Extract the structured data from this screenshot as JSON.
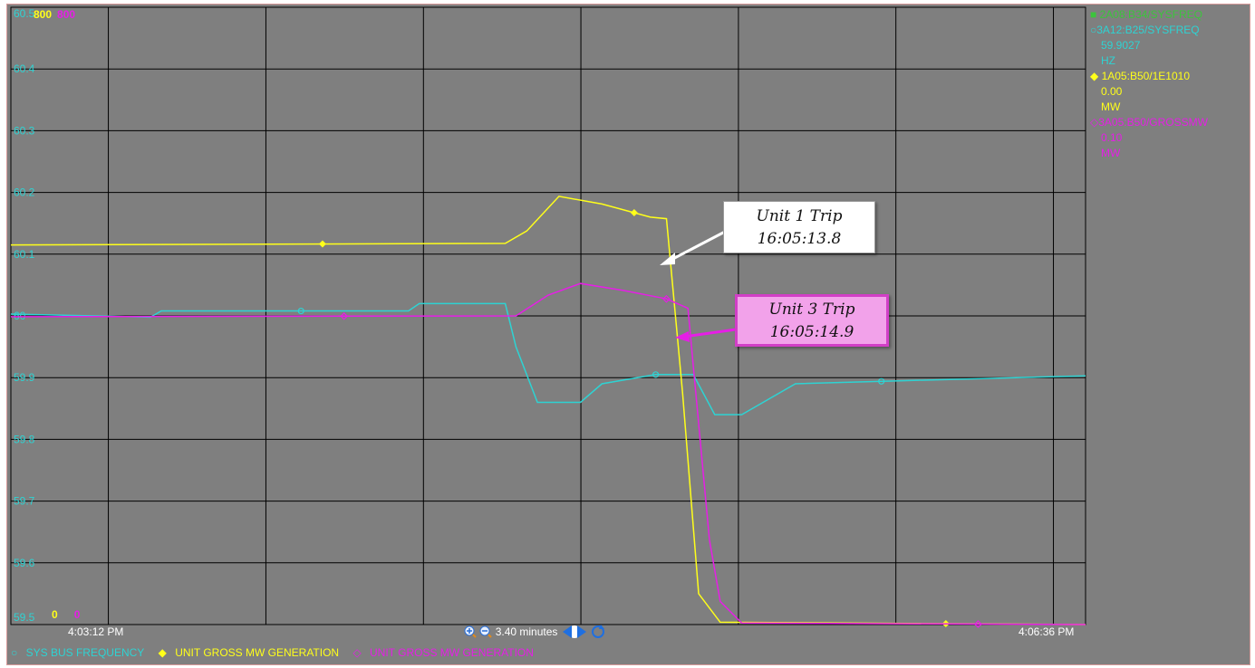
{
  "plot": {
    "y_axis_labels": [
      "60.5",
      "60.4",
      "60.3",
      "60.2",
      "60.1",
      "60",
      "59.9",
      "59.8",
      "59.7",
      "59.6",
      "59.5"
    ],
    "top_scale": {
      "yellow": "800",
      "magenta": "800"
    },
    "bottom_scale": {
      "yellow": "0",
      "magenta": "0"
    }
  },
  "bottom_bar": {
    "start_time": "4:03:12 PM",
    "end_time": "4:06:36 PM",
    "duration": "3.40 minutes"
  },
  "bottom_legend": {
    "cyan_label": "SYS BUS FREQUENCY",
    "yellow_label": "UNIT GROSS MW GENERATION",
    "magenta_label": "UNIT GROSS MW GENERATION"
  },
  "side_legend": {
    "green_tag": "2A08:B34/SYSFREQ",
    "cyan_tag": "3A12:B25/SYSFREQ",
    "cyan_value": "59.9027",
    "cyan_unit": "HZ",
    "yellow_tag": "1A05:B50/1E1010",
    "yellow_value": "0.00",
    "yellow_unit": "MW",
    "magenta_tag": "3A05:B50/GROSSMW",
    "magenta_value": "0.10",
    "magenta_unit": "MW"
  },
  "annotations": {
    "unit1_title": "Unit 1 Trip",
    "unit1_time": "16:05:13.8",
    "unit3_title": "Unit 3 Trip",
    "unit3_time": "16:05:14.9"
  },
  "colors": {
    "background": "#7f7f7f",
    "cyan": "#2ed3d3",
    "yellow": "#ffff1a",
    "magenta": "#e61ee6",
    "green": "#3cc43c",
    "grid": "#000000"
  },
  "chart_data": {
    "type": "line",
    "y_left_axis": {
      "range": [
        59.5,
        60.5
      ],
      "unit": "HZ"
    },
    "y_right_axis": {
      "range": [
        0,
        800
      ],
      "unit": "MW"
    },
    "x_range": [
      "4:03:12 PM",
      "4:06:36 PM"
    ],
    "grid": true,
    "series": [
      {
        "name": "SYS BUS FREQUENCY",
        "color": "#2ed3d3",
        "axis": "HZ",
        "points": [
          [
            0,
            60.003
          ],
          [
            0.13,
            59.998
          ],
          [
            0.14,
            60.008
          ],
          [
            0.37,
            60.008
          ],
          [
            0.38,
            60.02
          ],
          [
            0.46,
            60.02
          ],
          [
            0.47,
            59.95
          ],
          [
            0.49,
            59.86
          ],
          [
            0.53,
            59.86
          ],
          [
            0.55,
            59.89
          ],
          [
            0.6,
            59.905
          ],
          [
            0.635,
            59.905
          ],
          [
            0.655,
            59.84
          ],
          [
            0.68,
            59.84
          ],
          [
            0.73,
            59.89
          ],
          [
            0.83,
            59.895
          ],
          [
            1.0,
            59.903
          ]
        ]
      },
      {
        "name": "UNIT GROSS MW GENERATION",
        "color": "#ffff1a",
        "axis": "MW",
        "points": [
          [
            0,
            492
          ],
          [
            0.46,
            494
          ],
          [
            0.48,
            510
          ],
          [
            0.51,
            555
          ],
          [
            0.55,
            545
          ],
          [
            0.595,
            528
          ],
          [
            0.61,
            526
          ],
          [
            0.625,
            300
          ],
          [
            0.64,
            40
          ],
          [
            0.66,
            3
          ],
          [
            1.0,
            0
          ]
        ]
      },
      {
        "name": "UNIT GROSS MW GENERATION",
        "color": "#e61ee6",
        "axis": "MW",
        "points": [
          [
            0,
            399
          ],
          [
            0.47,
            400
          ],
          [
            0.5,
            427
          ],
          [
            0.53,
            442
          ],
          [
            0.57,
            433
          ],
          [
            0.61,
            422
          ],
          [
            0.63,
            410
          ],
          [
            0.65,
            110
          ],
          [
            0.66,
            30
          ],
          [
            0.68,
            2
          ],
          [
            1.0,
            0
          ]
        ]
      }
    ]
  }
}
